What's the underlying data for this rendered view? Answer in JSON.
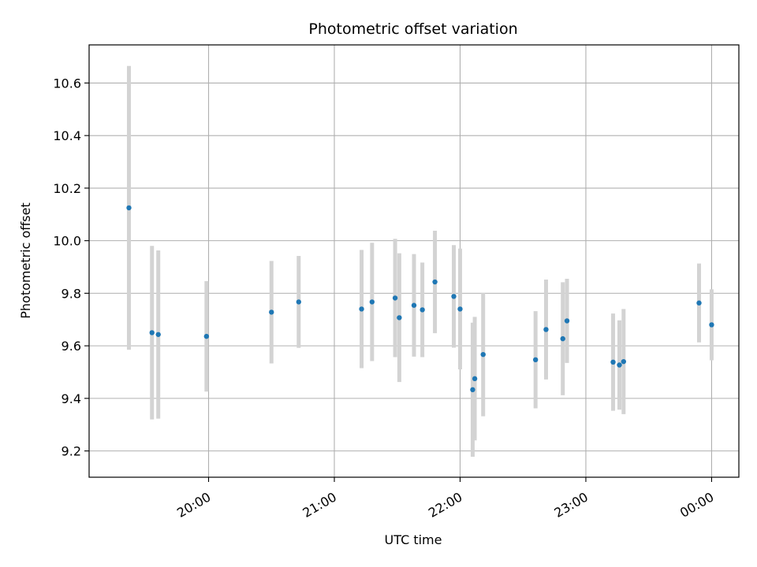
{
  "chart_data": {
    "type": "scatter",
    "title": "Photometric offset variation",
    "xlabel": "UTC time",
    "ylabel": "Photometric offset",
    "x_unit": "time of day (UTC)",
    "xlim": [
      "19:03",
      "00:13"
    ],
    "ylim": [
      9.1,
      10.745
    ],
    "x_ticks": [
      "20:00",
      "21:00",
      "22:00",
      "23:00",
      "00:00"
    ],
    "y_ticks": [
      9.2,
      9.4,
      9.6,
      9.8,
      10.0,
      10.2,
      10.4,
      10.6
    ],
    "grid": true,
    "legend": "none",
    "colors": {
      "points": "#1f77b4",
      "errorbars": "#d3d3d3",
      "grid": "#b0b0b0"
    },
    "points": [
      {
        "time": "19:22",
        "y": 10.125,
        "err": 0.54
      },
      {
        "time": "19:33",
        "y": 9.65,
        "err": 0.33
      },
      {
        "time": "19:36",
        "y": 9.643,
        "err": 0.32
      },
      {
        "time": "19:59",
        "y": 9.636,
        "err": 0.21
      },
      {
        "time": "20:30",
        "y": 9.728,
        "err": 0.195
      },
      {
        "time": "20:43",
        "y": 9.767,
        "err": 0.175
      },
      {
        "time": "21:13",
        "y": 9.74,
        "err": 0.225
      },
      {
        "time": "21:18",
        "y": 9.767,
        "err": 0.225
      },
      {
        "time": "21:29",
        "y": 9.782,
        "err": 0.225
      },
      {
        "time": "21:31",
        "y": 9.707,
        "err": 0.245
      },
      {
        "time": "21:38",
        "y": 9.754,
        "err": 0.195
      },
      {
        "time": "21:42",
        "y": 9.737,
        "err": 0.18
      },
      {
        "time": "21:48",
        "y": 9.843,
        "err": 0.195
      },
      {
        "time": "21:57",
        "y": 9.788,
        "err": 0.195
      },
      {
        "time": "22:00",
        "y": 9.74,
        "err": 0.23
      },
      {
        "time": "22:06",
        "y": 9.433,
        "err": 0.255
      },
      {
        "time": "22:07",
        "y": 9.475,
        "err": 0.235
      },
      {
        "time": "22:11",
        "y": 9.567,
        "err": 0.235
      },
      {
        "time": "22:36",
        "y": 9.547,
        "err": 0.185
      },
      {
        "time": "22:41",
        "y": 9.662,
        "err": 0.19
      },
      {
        "time": "22:49",
        "y": 9.627,
        "err": 0.215
      },
      {
        "time": "22:51",
        "y": 9.695,
        "err": 0.16
      },
      {
        "time": "23:13",
        "y": 9.538,
        "err": 0.185
      },
      {
        "time": "23:16",
        "y": 9.527,
        "err": 0.17
      },
      {
        "time": "23:18",
        "y": 9.54,
        "err": 0.2
      },
      {
        "time": "23:54",
        "y": 9.763,
        "err": 0.15
      },
      {
        "time": "00:00",
        "y": 9.68,
        "err": 0.135
      }
    ]
  }
}
